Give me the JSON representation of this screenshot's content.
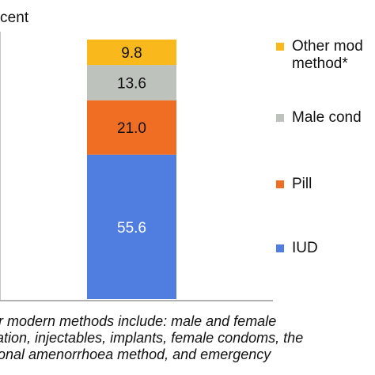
{
  "chart_data": {
    "type": "bar",
    "stacked": true,
    "ylabel": "cent",
    "categories": [
      ""
    ],
    "series": [
      {
        "name": "IUD",
        "values": [
          55.6
        ],
        "color": "#4f7ee0"
      },
      {
        "name": "Pill",
        "values": [
          21.0
        ],
        "color": "#f06e23"
      },
      {
        "name": "Male cond",
        "values": [
          13.6
        ],
        "color": "#bdc2bc"
      },
      {
        "name": "Other mod method*",
        "values": [
          9.8
        ],
        "color": "#f9b81c"
      }
    ],
    "data_labels": [
      "55.6",
      "21.0",
      "13.6",
      "9.8"
    ],
    "ylim": [
      0,
      100
    ],
    "grid": false,
    "legend": {
      "position": "right",
      "entries": [
        {
          "lines": [
            "Other mod",
            "method*"
          ],
          "color": "#f9b81c"
        },
        {
          "lines": [
            "Male cond"
          ],
          "color": "#bdc2bc"
        },
        {
          "lines": [
            "Pill"
          ],
          "color": "#f06e23"
        },
        {
          "lines": [
            "IUD"
          ],
          "color": "#4f7ee0"
        }
      ]
    },
    "footnote": [
      "her modern methods include: male and female",
      "lization, injectables, implants, female condoms, the",
      "ational amenorrhoea method, and emergency"
    ]
  }
}
